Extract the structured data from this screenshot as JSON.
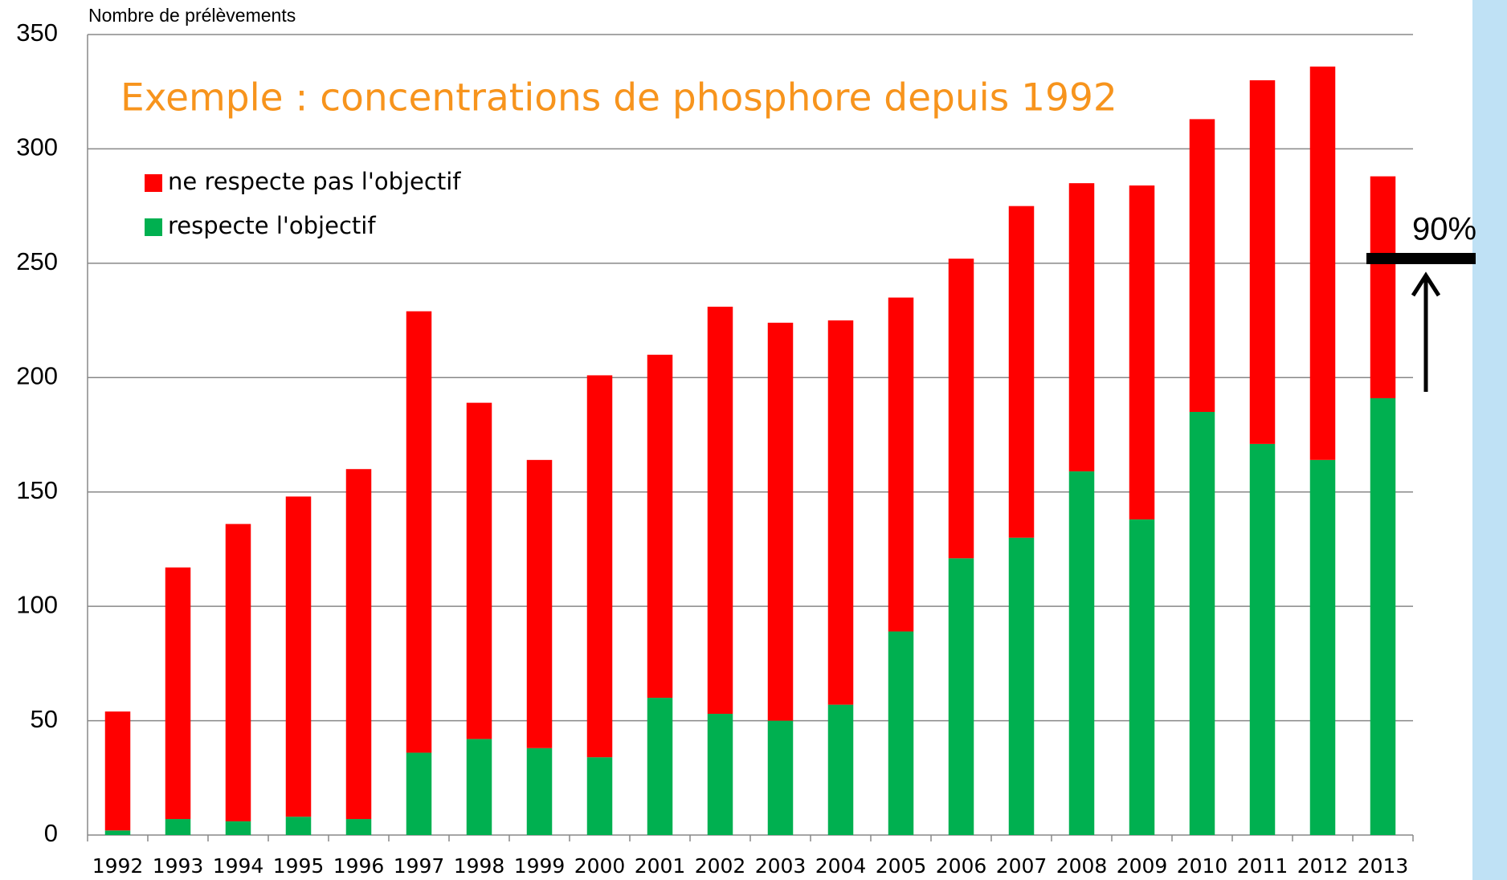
{
  "chart_data": {
    "type": "stacked_bar",
    "y_label": "Nombre de prélèvements",
    "title": "Exemple : concentrations de phosphore depuis 1992",
    "categories": [
      "1992",
      "1993",
      "1994",
      "1995",
      "1996",
      "1997",
      "1998",
      "1999",
      "2000",
      "2001",
      "2002",
      "2003",
      "2004",
      "2005",
      "2006",
      "2007",
      "2008",
      "2009",
      "2010",
      "2011",
      "2012",
      "2013"
    ],
    "series": [
      {
        "name": "ne respecte pas l'objectif",
        "color": "#ff0000",
        "values": [
          52,
          110,
          130,
          140,
          153,
          193,
          147,
          126,
          167,
          150,
          178,
          174,
          168,
          146,
          131,
          145,
          126,
          146,
          128,
          159,
          172,
          97
        ]
      },
      {
        "name": "respecte l'objectif",
        "color": "#00b050",
        "values": [
          2,
          7,
          6,
          8,
          7,
          36,
          42,
          38,
          34,
          60,
          53,
          50,
          57,
          89,
          121,
          130,
          159,
          138,
          185,
          171,
          164,
          191
        ]
      }
    ],
    "ylim": [
      0,
      350
    ],
    "yticks": [
      0,
      50,
      100,
      150,
      200,
      250,
      300,
      350
    ],
    "grid": true,
    "annotation": "90%"
  }
}
